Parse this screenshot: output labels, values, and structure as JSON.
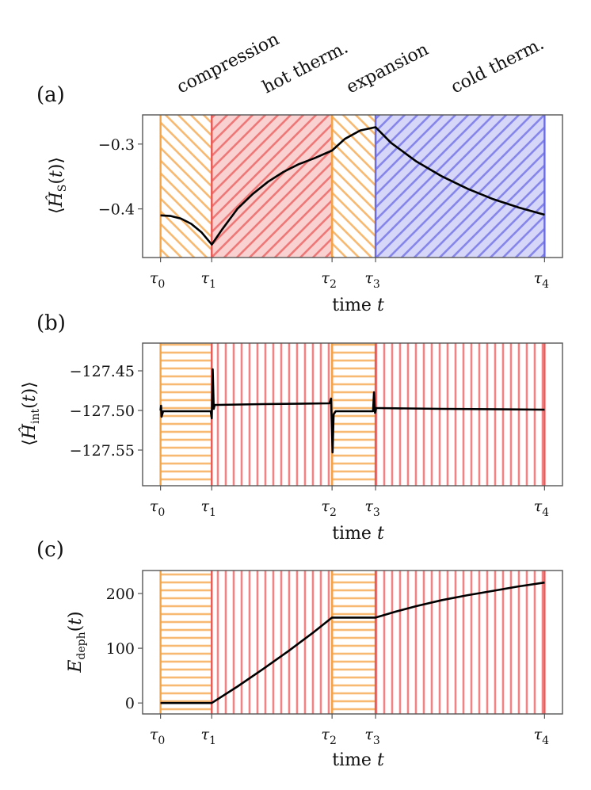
{
  "figure": {
    "phase_labels": [
      "compression",
      "hot therm.",
      "expansion",
      "cold therm."
    ]
  },
  "colors": {
    "compression": "#f5a343",
    "hot": "#ea5a5a",
    "cold": "#6b6be6",
    "curve": "#000000",
    "axis": "#555555"
  },
  "chart_data": [
    {
      "type": "line",
      "panel_label": "(a)",
      "xlabel": "time t",
      "ylabel": "⟨Ĥ_S(t)⟩",
      "x_ticks": [
        "τ0",
        "τ1",
        "τ2",
        "τ3",
        "τ4"
      ],
      "x_tick_positions": [
        0,
        1,
        3.35,
        4.2,
        7.5
      ],
      "xlim": [
        -0.35,
        7.85
      ],
      "ylim": [
        -0.475,
        -0.255
      ],
      "y_ticks": [
        -0.3,
        -0.4
      ],
      "y_tick_labels": [
        "−0.3",
        "−0.4"
      ],
      "regions": [
        {
          "from": 0,
          "to": 1,
          "stroke": "compression",
          "pattern": "backslash",
          "fill": "none"
        },
        {
          "from": 1,
          "to": 3.35,
          "stroke": "hot",
          "pattern": "slash",
          "fill": "hot"
        },
        {
          "from": 3.35,
          "to": 4.2,
          "stroke": "compression",
          "pattern": "backslash",
          "fill": "none"
        },
        {
          "from": 4.2,
          "to": 7.5,
          "stroke": "cold",
          "pattern": "slash",
          "fill": "cold"
        }
      ],
      "series": [
        {
          "x": [
            0,
            0.2,
            0.4,
            0.6,
            0.8,
            1.0,
            1.2,
            1.5,
            1.8,
            2.1,
            2.4,
            2.7,
            3.0,
            3.35,
            3.6,
            3.9,
            4.2,
            4.5,
            5.0,
            5.5,
            6.0,
            6.5,
            7.0,
            7.5
          ],
          "y": [
            -0.41,
            -0.411,
            -0.415,
            -0.423,
            -0.436,
            -0.455,
            -0.432,
            -0.4,
            -0.377,
            -0.358,
            -0.343,
            -0.331,
            -0.322,
            -0.31,
            -0.292,
            -0.279,
            -0.274,
            -0.298,
            -0.327,
            -0.35,
            -0.369,
            -0.385,
            -0.398,
            -0.409
          ]
        }
      ]
    },
    {
      "type": "line",
      "panel_label": "(b)",
      "xlabel": "time t",
      "ylabel": "⟨Ĥ_int(t)⟩",
      "x_ticks": [
        "τ0",
        "τ1",
        "τ2",
        "τ3",
        "τ4"
      ],
      "x_tick_positions": [
        0,
        1,
        3.35,
        4.2,
        7.5
      ],
      "xlim": [
        -0.35,
        7.85
      ],
      "ylim": [
        -127.595,
        -127.415
      ],
      "y_ticks": [
        -127.45,
        -127.5,
        -127.55
      ],
      "y_tick_labels": [
        "−127.45",
        "−127.50",
        "−127.55"
      ],
      "regions": [
        {
          "from": 0,
          "to": 1,
          "stroke": "compression",
          "pattern": "horizontal",
          "fill": "none"
        },
        {
          "from": 1,
          "to": 3.35,
          "stroke": "hot",
          "pattern": "vertical",
          "fill": "none"
        },
        {
          "from": 3.35,
          "to": 4.2,
          "stroke": "compression",
          "pattern": "horizontal",
          "fill": "none"
        },
        {
          "from": 4.2,
          "to": 7.5,
          "stroke": "hot",
          "pattern": "vertical",
          "fill": "none"
        }
      ],
      "series": [
        {
          "x": [
            0,
            0.01,
            0.02,
            0.05,
            0.98,
            1.0,
            1.02,
            1.04,
            1.06,
            1.1,
            2.0,
            3.3,
            3.33,
            3.36,
            3.38,
            3.42,
            3.5,
            4.15,
            4.17,
            4.19,
            4.21,
            4.25,
            5.5,
            7.5
          ],
          "y": [
            -127.5,
            -127.494,
            -127.508,
            -127.501,
            -127.501,
            -127.51,
            -127.448,
            -127.498,
            -127.493,
            -127.493,
            -127.492,
            -127.491,
            -127.485,
            -127.553,
            -127.505,
            -127.501,
            -127.501,
            -127.501,
            -127.477,
            -127.503,
            -127.497,
            -127.497,
            -127.498,
            -127.499
          ]
        }
      ]
    },
    {
      "type": "line",
      "panel_label": "(c)",
      "xlabel": "time t",
      "ylabel": "E_deph(t)",
      "x_ticks": [
        "τ0",
        "τ1",
        "τ2",
        "τ3",
        "τ4"
      ],
      "x_tick_positions": [
        0,
        1,
        3.35,
        4.2,
        7.5
      ],
      "xlim": [
        -0.35,
        7.85
      ],
      "ylim": [
        -20,
        242
      ],
      "y_ticks": [
        0,
        100,
        200
      ],
      "y_tick_labels": [
        "0",
        "100",
        "200"
      ],
      "regions": [
        {
          "from": 0,
          "to": 1,
          "stroke": "compression",
          "pattern": "horizontal",
          "fill": "none"
        },
        {
          "from": 1,
          "to": 3.35,
          "stroke": "hot",
          "pattern": "vertical",
          "fill": "none"
        },
        {
          "from": 3.35,
          "to": 4.2,
          "stroke": "compression",
          "pattern": "horizontal",
          "fill": "none"
        },
        {
          "from": 4.2,
          "to": 7.5,
          "stroke": "hot",
          "pattern": "vertical",
          "fill": "none"
        }
      ],
      "series": [
        {
          "x": [
            0,
            1.0,
            1.5,
            2.0,
            2.5,
            3.0,
            3.35,
            4.2,
            4.6,
            5.0,
            5.5,
            6.0,
            6.5,
            7.0,
            7.5
          ],
          "y": [
            0,
            0,
            30,
            62,
            95,
            130,
            156,
            156,
            167,
            177,
            188,
            197,
            205,
            213,
            220
          ]
        }
      ]
    }
  ]
}
